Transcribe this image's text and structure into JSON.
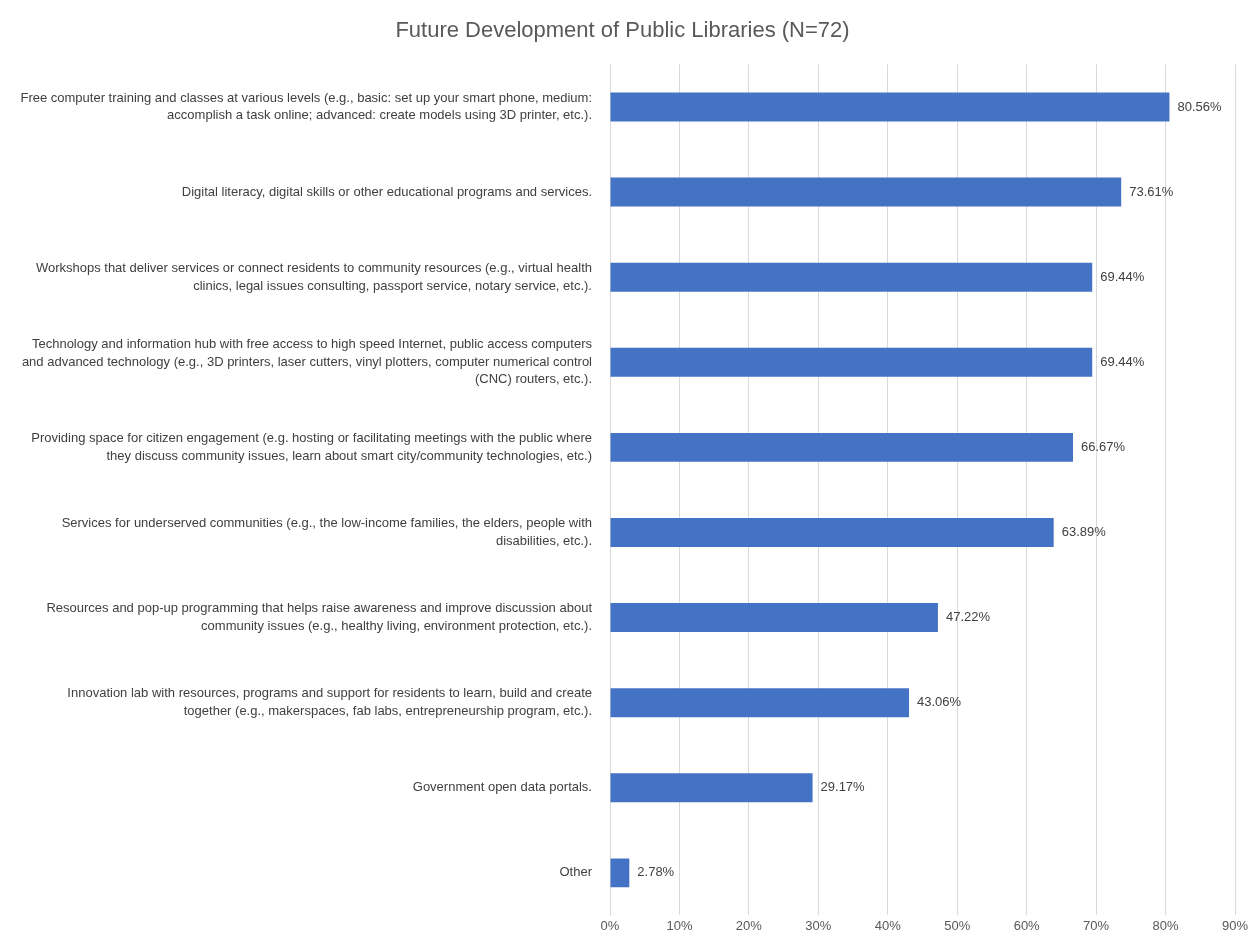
{
  "chart_data": {
    "type": "bar",
    "orientation": "horizontal",
    "title": "Future Development of Public Libraries (N=72)",
    "categories": [
      "Free computer training and classes at various levels (e.g., basic: set up your smart phone, medium: accomplish a task online; advanced: create models using 3D printer, etc.).",
      "Digital literacy, digital skills or other educational programs and services.",
      "Workshops that deliver services or connect residents to community resources (e.g., virtual health clinics, legal issues consulting, passport service, notary service, etc.).",
      "Technology and information hub with free access to high speed Internet, public access computers and advanced technology (e.g., 3D printers, laser cutters, vinyl plotters, computer numerical control (CNC) routers, etc.).",
      "Providing space for citizen engagement (e.g. hosting or facilitating meetings with the public where they discuss community issues, learn about smart city/community technologies, etc.)",
      "Services for underserved communities (e.g., the low-income families, the elders, people with disabilities, etc.).",
      "Resources and pop-up programming that helps raise awareness and improve discussion about community issues (e.g., healthy living, environment protection, etc.).",
      "Innovation lab with resources, programs and support for residents to learn, build and create together (e.g., makerspaces, fab labs, entrepreneurship program, etc.).",
      "Government open data portals.",
      "Other"
    ],
    "values": [
      80.56,
      73.61,
      69.44,
      69.44,
      66.67,
      63.89,
      47.22,
      43.06,
      29.17,
      2.78
    ],
    "value_labels": [
      "80.56%",
      "73.61%",
      "69.44%",
      "69.44%",
      "66.67%",
      "63.89%",
      "47.22%",
      "43.06%",
      "29.17%",
      "2.78%"
    ],
    "color": "#4472c4",
    "xlim": [
      0,
      90
    ],
    "xticks": [
      {
        "value": 0,
        "label": "0%"
      },
      {
        "value": 10,
        "label": "10%"
      },
      {
        "value": 20,
        "label": "20%"
      },
      {
        "value": 30,
        "label": "30%"
      },
      {
        "value": 40,
        "label": "40%"
      },
      {
        "value": 50,
        "label": "50%"
      },
      {
        "value": 60,
        "label": "60%"
      },
      {
        "value": 70,
        "label": "70%"
      },
      {
        "value": 80,
        "label": "80%"
      },
      {
        "value": 90,
        "label": "90%"
      }
    ],
    "grid": "x",
    "legend": false
  }
}
